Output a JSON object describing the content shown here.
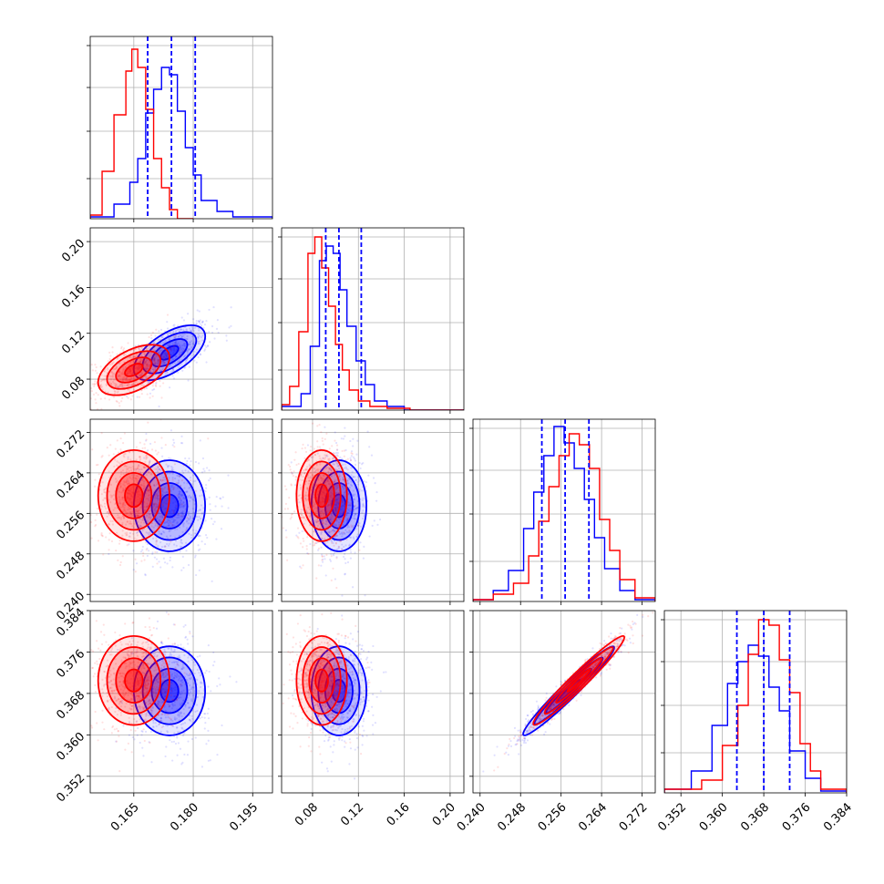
{
  "chart_data": {
    "type": "corner",
    "parameters": [
      {
        "ticks": [
          0.165,
          0.18,
          0.195
        ],
        "tick_labels": [
          "0.165",
          "0.180",
          "0.195"
        ],
        "range": [
          0.154,
          0.2
        ]
      },
      {
        "ticks": [
          0.08,
          0.12,
          0.16,
          0.2
        ],
        "tick_labels": [
          "0.08",
          "0.12",
          "0.16",
          "0.20"
        ],
        "range": [
          0.053,
          0.212
        ]
      },
      {
        "ticks": [
          0.24,
          0.248,
          0.256,
          0.264,
          0.272
        ],
        "tick_labels": [
          "0.240",
          "0.248",
          "0.256",
          "0.264",
          "0.272"
        ],
        "range": [
          0.2386,
          0.2746
        ]
      },
      {
        "ticks": [
          0.352,
          0.36,
          0.368,
          0.376,
          0.384
        ],
        "tick_labels": [
          "0.352",
          "0.360",
          "0.368",
          "0.376",
          "0.384"
        ],
        "range": [
          0.3488,
          0.384
        ]
      }
    ],
    "series": [
      {
        "color": "#ff0000",
        "mean": [
          0.165,
          0.088,
          0.2595,
          0.3705
        ],
        "sd": [
          0.0045,
          0.011,
          0.0045,
          0.0043
        ],
        "histograms": [
          {
            "bins": [
              0.154,
              0.157,
              0.16,
              0.163,
              0.1645,
              0.166,
              0.168,
              0.17,
              0.172,
              0.174,
              0.176,
              0.18
            ],
            "counts": [
              0.02,
              0.26,
              0.57,
              0.81,
              0.93,
              0.83,
              0.6,
              0.33,
              0.17,
              0.05,
              0.0
            ]
          },
          {
            "bins": [
              0.053,
              0.06,
              0.068,
              0.076,
              0.082,
              0.088,
              0.094,
              0.1,
              0.106,
              0.112,
              0.12,
              0.13,
              0.145,
              0.165,
              0.212
            ],
            "counts": [
              0.03,
              0.13,
              0.43,
              0.86,
              0.95,
              0.78,
              0.57,
              0.36,
              0.22,
              0.11,
              0.05,
              0.02,
              0.01,
              0.0
            ]
          },
          {
            "bins": [
              0.2386,
              0.2426,
              0.2466,
              0.2496,
              0.2516,
              0.2536,
              0.2556,
              0.2576,
              0.2596,
              0.2616,
              0.2636,
              0.2656,
              0.2676,
              0.2706,
              0.2746
            ],
            "counts": [
              0.01,
              0.04,
              0.1,
              0.25,
              0.44,
              0.63,
              0.8,
              0.92,
              0.86,
              0.73,
              0.45,
              0.28,
              0.12,
              0.02
            ]
          },
          {
            "bins": [
              0.3488,
              0.356,
              0.36,
              0.363,
              0.365,
              0.367,
              0.369,
              0.371,
              0.373,
              0.375,
              0.377,
              0.379,
              0.384
            ],
            "counts": [
              0.02,
              0.07,
              0.26,
              0.48,
              0.76,
              0.95,
              0.92,
              0.73,
              0.55,
              0.27,
              0.12,
              0.02
            ]
          }
        ],
        "density_corr": [
          [
            0,
            0.5,
            0.0,
            0.0
          ],
          [
            0.5,
            0,
            0.0,
            0.0
          ],
          [
            0.0,
            0.0,
            0,
            0.97
          ],
          [
            0.0,
            0.0,
            0.97,
            0
          ]
        ]
      },
      {
        "color": "#0000ff",
        "mean": [
          0.174,
          0.103,
          0.2575,
          0.3685
        ],
        "sd": [
          0.0045,
          0.012,
          0.0045,
          0.0043
        ],
        "histograms": [
          {
            "bins": [
              0.154,
              0.16,
              0.164,
              0.166,
              0.168,
              0.17,
              0.172,
              0.174,
              0.176,
              0.178,
              0.18,
              0.182,
              0.186,
              0.19,
              0.2
            ],
            "counts": [
              0.01,
              0.08,
              0.2,
              0.33,
              0.58,
              0.71,
              0.83,
              0.79,
              0.59,
              0.39,
              0.24,
              0.1,
              0.04,
              0.01
            ]
          },
          {
            "bins": [
              0.053,
              0.07,
              0.078,
              0.086,
              0.092,
              0.098,
              0.104,
              0.11,
              0.118,
              0.126,
              0.134,
              0.145,
              0.16,
              0.212
            ],
            "counts": [
              0.02,
              0.09,
              0.35,
              0.82,
              0.9,
              0.86,
              0.66,
              0.46,
              0.27,
              0.14,
              0.05,
              0.02,
              0.0
            ]
          },
          {
            "bins": [
              0.2386,
              0.2426,
              0.2456,
              0.2486,
              0.2506,
              0.2526,
              0.2546,
              0.2566,
              0.2586,
              0.2606,
              0.2626,
              0.2646,
              0.2676,
              0.2706,
              0.2746
            ],
            "counts": [
              0.01,
              0.06,
              0.17,
              0.4,
              0.6,
              0.8,
              0.96,
              0.87,
              0.73,
              0.56,
              0.35,
              0.18,
              0.06,
              0.01
            ]
          },
          {
            "bins": [
              0.3488,
              0.354,
              0.358,
              0.361,
              0.363,
              0.365,
              0.367,
              0.369,
              0.371,
              0.373,
              0.376,
              0.379,
              0.384
            ],
            "counts": [
              0.02,
              0.12,
              0.37,
              0.6,
              0.72,
              0.81,
              0.75,
              0.58,
              0.45,
              0.23,
              0.08,
              0.01
            ]
          }
        ],
        "quantiles": [
          [
            0.1685,
            0.1745,
            0.1805
          ],
          [
            0.0915,
            0.103,
            0.1225
          ],
          [
            0.2522,
            0.2568,
            0.2615
          ],
          [
            0.3628,
            0.368,
            0.373
          ]
        ],
        "density_corr": [
          [
            0,
            0.6,
            0.0,
            0.0
          ],
          [
            0.6,
            0,
            0.0,
            0.0
          ],
          [
            0.0,
            0.0,
            0,
            0.97
          ],
          [
            0.0,
            0.0,
            0.97,
            0
          ]
        ]
      }
    ],
    "contour_levels_sigma": [
      0.5,
      1.0,
      1.5,
      2.0
    ],
    "grid": true,
    "panel_layout": "lower-triangle"
  }
}
